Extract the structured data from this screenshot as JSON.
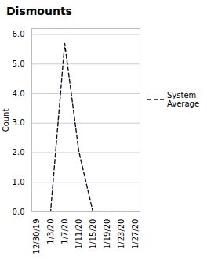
{
  "chart_data": {
    "type": "line",
    "title": "Dismounts",
    "categories": [
      "12/30/19",
      "1/3/20",
      "1/7/20",
      "1/11/20",
      "1/15/20",
      "1/19/20",
      "1/23/20",
      "1/27/20"
    ],
    "series": [
      {
        "name": "System\nAverage",
        "color": "#111122",
        "line_style": "dashed",
        "values": [
          0,
          0,
          5.7,
          2.05,
          0,
          0,
          0,
          0
        ]
      }
    ],
    "ylabel": "Count",
    "ylim": [
      0,
      6.2
    ],
    "yticks": [
      0,
      1,
      2,
      3,
      4,
      5,
      6
    ],
    "grid": true,
    "legend": "right"
  }
}
